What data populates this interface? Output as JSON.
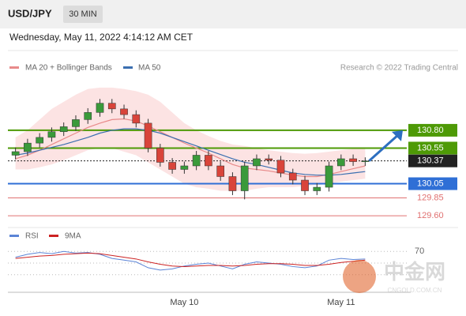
{
  "header": {
    "symbol": "USD/JPY",
    "timeframe": "30 MIN",
    "timestamp": "Wednesday, May 11, 2022 4:14:12 AM CET"
  },
  "legend": {
    "ma20": "MA 20 + Bollinger Bands",
    "ma50": "MA 50",
    "credit": "Research © 2022 Trading Central"
  },
  "watermark": {
    "brand": "中金网",
    "site": "CNGOLD.COM.CN"
  },
  "chart_data": {
    "type": "candlestick",
    "categories": [
      null,
      null,
      null,
      null,
      null,
      null,
      null,
      null,
      null,
      null,
      null,
      null,
      null,
      null,
      "May 10",
      null,
      null,
      null,
      null,
      null,
      null,
      null,
      null,
      null,
      null,
      null,
      null,
      "May 11",
      null,
      null
    ],
    "open": [
      130.45,
      130.5,
      130.62,
      130.7,
      130.78,
      130.85,
      130.95,
      131.05,
      131.18,
      131.1,
      131.02,
      130.9,
      130.55,
      130.35,
      130.25,
      130.3,
      130.45,
      130.3,
      130.15,
      129.95,
      130.3,
      130.4,
      130.38,
      130.2,
      130.1,
      129.95,
      130.0,
      130.3,
      130.4,
      130.36
    ],
    "high": [
      130.56,
      130.68,
      130.76,
      130.84,
      130.91,
      131.01,
      131.11,
      131.24,
      131.24,
      131.16,
      131.08,
      130.96,
      130.61,
      130.41,
      130.36,
      130.51,
      130.51,
      130.36,
      130.21,
      130.36,
      130.46,
      130.46,
      130.44,
      130.26,
      130.16,
      130.06,
      130.36,
      130.46,
      130.46,
      130.42
    ],
    "low": [
      130.39,
      130.44,
      130.56,
      130.64,
      130.72,
      130.79,
      130.89,
      130.99,
      131.04,
      130.96,
      130.84,
      130.49,
      130.29,
      130.19,
      130.19,
      130.24,
      130.24,
      130.09,
      129.89,
      129.83,
      130.24,
      130.32,
      130.14,
      130.04,
      129.89,
      129.89,
      129.94,
      130.24,
      130.3,
      130.3
    ],
    "close": [
      130.5,
      130.62,
      130.7,
      130.78,
      130.85,
      130.95,
      131.05,
      131.18,
      131.1,
      131.02,
      130.9,
      130.55,
      130.35,
      130.25,
      130.3,
      130.45,
      130.3,
      130.15,
      129.95,
      130.3,
      130.4,
      130.38,
      130.2,
      130.1,
      129.95,
      130.0,
      130.3,
      130.4,
      130.36,
      130.37
    ],
    "ma20": [
      130.4,
      130.45,
      130.52,
      130.6,
      130.68,
      130.76,
      130.84,
      130.9,
      130.95,
      130.96,
      130.93,
      130.86,
      130.78,
      130.7,
      130.62,
      130.55,
      130.48,
      130.4,
      130.32,
      130.27,
      130.25,
      130.23,
      130.2,
      130.17,
      130.15,
      130.15,
      130.18,
      130.22,
      130.26,
      130.3
    ],
    "ma50": [
      130.45,
      130.48,
      130.52,
      130.56,
      130.6,
      130.65,
      130.7,
      130.76,
      130.8,
      130.82,
      130.82,
      130.8,
      130.76,
      130.7,
      130.64,
      130.58,
      130.52,
      130.46,
      130.4,
      130.35,
      130.32,
      130.28,
      130.24,
      130.2,
      130.18,
      130.17,
      130.17,
      130.18,
      130.2,
      130.22
    ],
    "bb_upper": [
      130.7,
      130.8,
      130.95,
      131.1,
      131.2,
      131.3,
      131.38,
      131.4,
      131.4,
      131.38,
      131.35,
      131.3,
      131.2,
      131.05,
      130.9,
      130.8,
      130.72,
      130.65,
      130.6,
      130.58,
      130.55,
      130.52,
      130.5,
      130.48,
      130.47,
      130.48,
      130.5,
      130.52,
      130.54,
      130.55
    ],
    "bb_lower": [
      130.25,
      130.25,
      130.28,
      130.32,
      130.38,
      130.45,
      130.52,
      130.55,
      130.55,
      130.5,
      130.45,
      130.35,
      130.25,
      130.15,
      130.05,
      130.0,
      129.98,
      129.95,
      129.95,
      129.95,
      129.98,
      130.0,
      130.0,
      130.0,
      130.02,
      130.03,
      130.05,
      130.08,
      130.1,
      130.12
    ],
    "ma20_color": "#e88a8a",
    "ma50_color": "#3b6fb0",
    "band_color": "#fbdcdc",
    "up_color": "#3a9a3a",
    "down_color": "#d9443a",
    "ylim": [
      129.49,
      131.52
    ],
    "levels": [
      {
        "value": 130.8,
        "label": "130.80",
        "color": "#4e9a06",
        "boxed": true
      },
      {
        "value": 130.55,
        "label": "130.55",
        "color": "#4e9a06",
        "boxed": true
      },
      {
        "value": 130.37,
        "label": "130.37",
        "color": "#222222",
        "boxed": true
      },
      {
        "value": 130.05,
        "label": "130.05",
        "color": "#2f6fd6",
        "boxed": true
      },
      {
        "value": 129.85,
        "label": "129.85",
        "color": "#e07070",
        "boxed": false
      },
      {
        "value": 129.6,
        "label": "129.60",
        "color": "#e07070",
        "boxed": false
      }
    ],
    "rsi": {
      "name": "RSI",
      "color": "#5b84d6",
      "values": [
        60,
        65,
        68,
        66,
        70,
        67,
        68,
        65,
        58,
        55,
        52,
        42,
        38,
        40,
        45,
        48,
        50,
        45,
        40,
        48,
        52,
        50,
        48,
        44,
        42,
        45,
        55,
        58,
        56,
        57
      ]
    },
    "rsi_ma": {
      "name": "9MA",
      "color": "#cc2222",
      "values": [
        58,
        60,
        62,
        63,
        65,
        66,
        67,
        66,
        63,
        60,
        57,
        52,
        48,
        45,
        44,
        45,
        46,
        46,
        45,
        46,
        48,
        49,
        49,
        48,
        46,
        46,
        48,
        51,
        53,
        55
      ]
    },
    "rsi_ylim": [
      0,
      100
    ],
    "rsi_yticks": [
      70
    ]
  }
}
